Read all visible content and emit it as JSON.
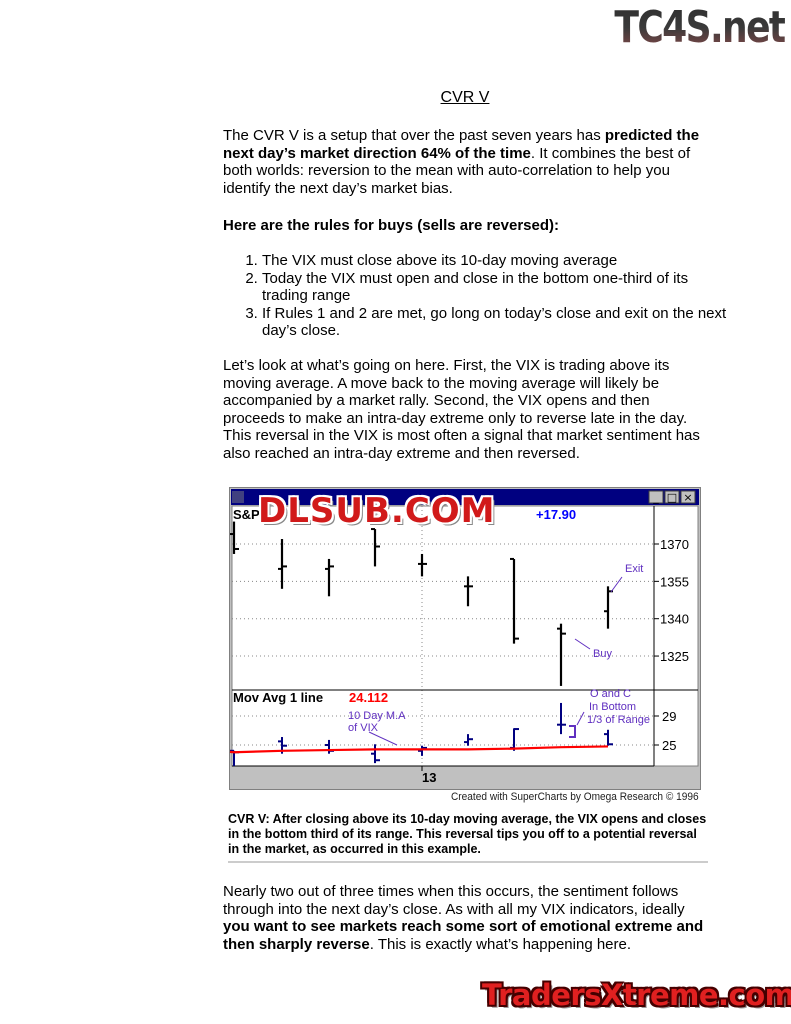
{
  "watermarks": {
    "top": "TC4S.net",
    "chart": "DLSUB.COM",
    "bottom": "TradersXtreme.com"
  },
  "title": "CVR V",
  "intro": {
    "part1": "The CVR V is a setup that over the past seven years has ",
    "bold": "predicted the next day’s market direction 64% of the time",
    "part2": ". It combines the best of both worlds: reversion to the mean with auto-correlation to help you identify the next day’s market bias."
  },
  "rules_heading": "Here are the rules for buys (sells are reversed):",
  "rules": [
    "The VIX must close above its 10-day moving average",
    "Today the VIX must open and close in the bottom one-third of its trading range",
    "If Rules 1 and 2 are met, go long on today’s close and exit on the next day’s close."
  ],
  "explanation": "Let’s look at what’s going on here. First, the VIX is trading above its moving average. A move back to the moving average will likely be accompanied by a market rally. Second, the VIX opens and then proceeds to make an intra-day extreme only to reverse late in the day. This reversal in the VIX is most often a signal that market sentiment has also reached an intra-day extreme and then reversed.",
  "chart_data": {
    "type": "ohlc",
    "window_buttons": [
      "_",
      "□",
      "×"
    ],
    "price_panel": {
      "label": "S&P",
      "change": "+17.90",
      "ylim": [
        1312,
        1382
      ],
      "yticks": [
        1370,
        1355,
        1340,
        1325
      ],
      "bars": [
        {
          "o": 1374,
          "h": 1379,
          "l": 1366,
          "c": 1368
        },
        {
          "o": 1360,
          "h": 1372,
          "l": 1352,
          "c": 1361
        },
        {
          "o": 1360,
          "h": 1364,
          "l": 1349,
          "c": 1361
        },
        {
          "o": 1376,
          "h": 1376,
          "l": 1361,
          "c": 1369
        },
        {
          "o": 1362,
          "h": 1366,
          "l": 1357,
          "c": 1362
        },
        {
          "o": 1353,
          "h": 1357,
          "l": 1345,
          "c": 1353
        },
        {
          "o": 1364,
          "h": 1364,
          "l": 1330,
          "c": 1332
        },
        {
          "o": 1336,
          "h": 1338,
          "l": 1313,
          "c": 1334
        },
        {
          "o": 1343,
          "h": 1353,
          "l": 1336,
          "c": 1351
        }
      ],
      "annotations": {
        "buy": "Buy",
        "exit": "Exit"
      }
    },
    "vix_panel": {
      "label": "Mov Avg 1 line",
      "value": "24.112",
      "ylim": [
        21.5,
        32
      ],
      "yticks": [
        29,
        25
      ],
      "bars": [
        {
          "o": 24.2,
          "h": 24.2,
          "l": 22.1,
          "c": 24.0
        },
        {
          "o": 25.5,
          "h": 26.1,
          "l": 23.8,
          "c": 24.9
        },
        {
          "o": 25.0,
          "h": 25.7,
          "l": 23.8,
          "c": 24.2
        },
        {
          "o": 23.8,
          "h": 25.1,
          "l": 22.5,
          "c": 22.9
        },
        {
          "o": 24.2,
          "h": 24.9,
          "l": 23.5,
          "c": 24.6
        },
        {
          "o": 25.4,
          "h": 26.5,
          "l": 24.9,
          "c": 25.8
        },
        {
          "o": 24.6,
          "h": 27.3,
          "l": 24.2,
          "c": 27.2
        },
        {
          "o": 27.8,
          "h": 30.8,
          "l": 26.5,
          "c": 27.8
        },
        {
          "o": 26.5,
          "h": 27.1,
          "l": 24.9,
          "c": 25.1
        }
      ],
      "moving_average": [
        24.0,
        24.2,
        24.3,
        24.4,
        24.4,
        24.4,
        24.5,
        24.7,
        24.8
      ],
      "ma_color": "#ff0000",
      "bar_color": "#000080",
      "annotations": {
        "ma": [
          "10 Day M.A",
          "of VIX"
        ],
        "oc": [
          "O and C",
          "In Bottom",
          "1/3 of Range"
        ]
      }
    },
    "x_tick": "13"
  },
  "chart_credit": "Created with SuperCharts by Omega Research © 1996",
  "caption": "CVR V: After closing above its 10-day moving average, the VIX opens and closes in the bottom third of its range. This reversal tips you off to a potential reversal in the market, as occurred in this example.",
  "closing": {
    "part1": "Nearly two out of three times when this occurs, the sentiment follows through into the next day’s close. As with all my VIX indicators, ideally ",
    "bold": "you want to see markets reach some sort of emotional extreme and then sharply reverse",
    "part2": ". This is exactly what’s happening here."
  }
}
